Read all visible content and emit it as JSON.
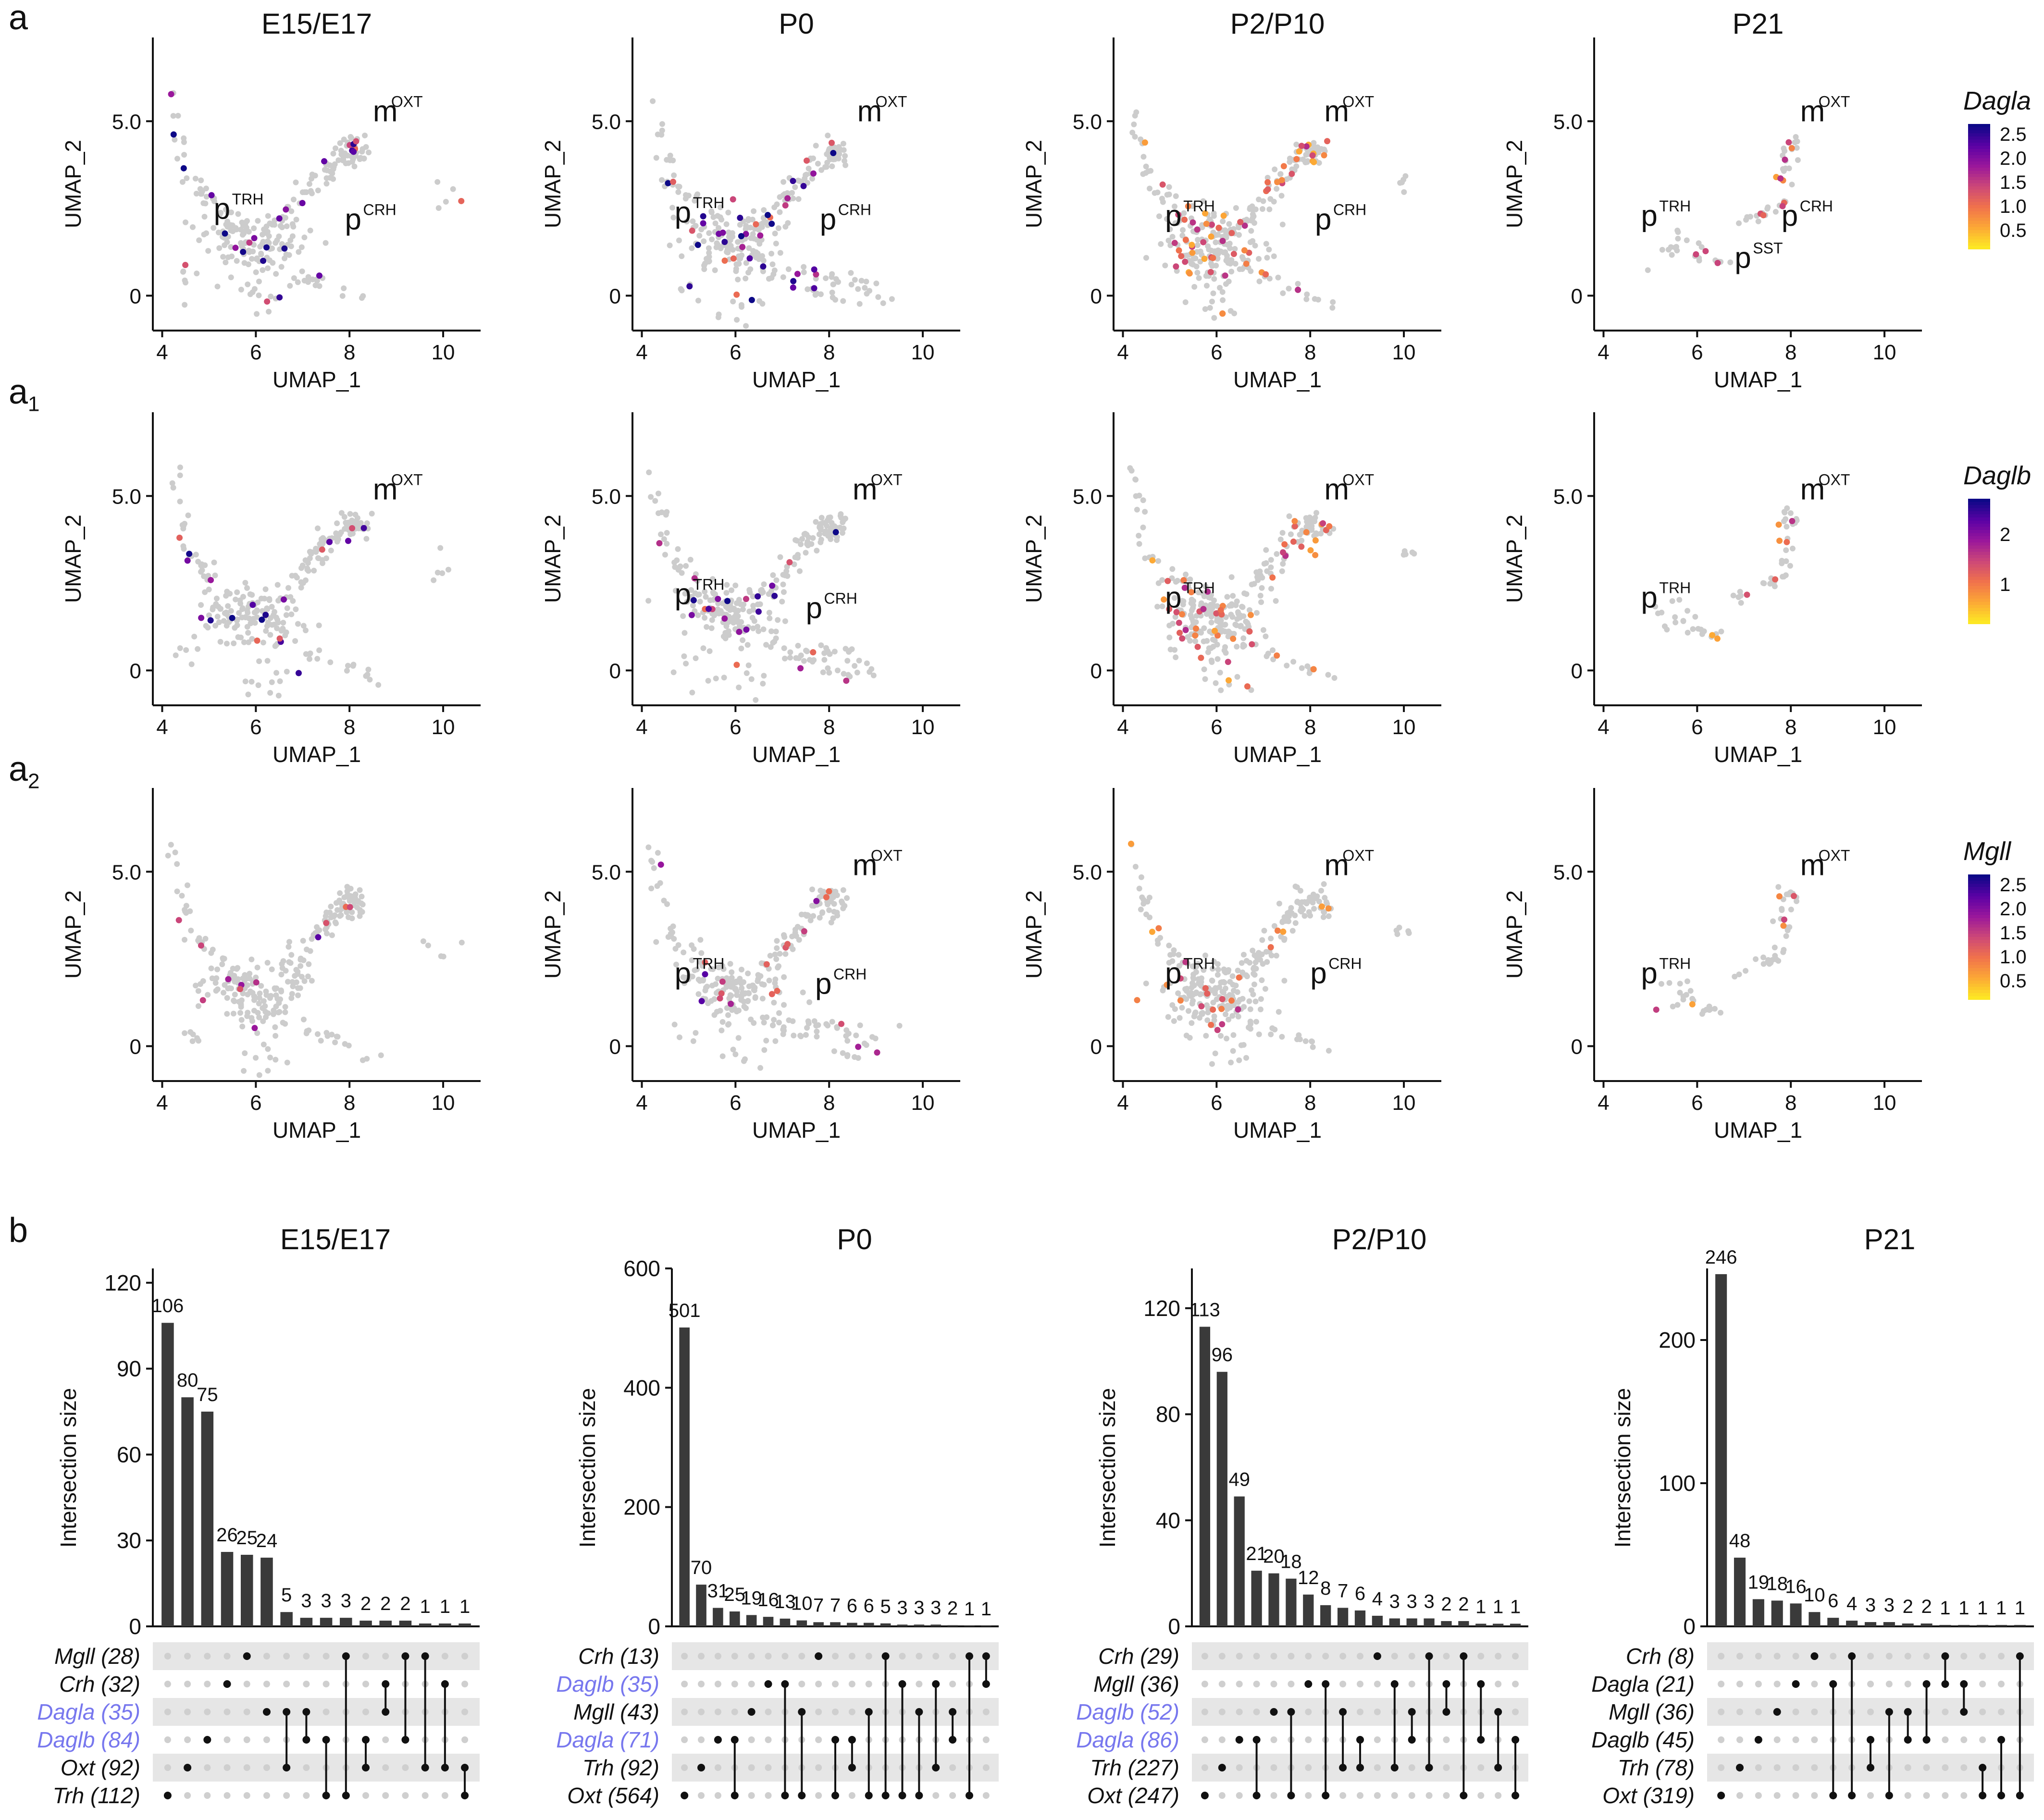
{
  "panel_labels": {
    "a": "a",
    "a1": "a",
    "a1_sub": "1",
    "a2": "a",
    "a2_sub": "2",
    "b": "b"
  },
  "stages": [
    "E15/E17",
    "P0",
    "P2/P10",
    "P21"
  ],
  "umap": {
    "x_label": "UMAP_1",
    "y_label": "UMAP_2",
    "x_ticks": [
      "4",
      "6",
      "8",
      "10"
    ],
    "y_ticks": [
      "0",
      "5.0"
    ],
    "xlim": [
      3.8,
      10.8
    ],
    "ylim": [
      -1.0,
      7.4
    ],
    "rows": [
      {
        "gene": "Dagla",
        "colorbar_ticks": [
          "2.5",
          "2.0",
          "1.5",
          "1.0",
          "0.5"
        ],
        "colorbar_values": [
          2.5,
          2.0,
          1.5,
          1.0,
          0.5
        ],
        "colorbar_range": [
          0.1,
          2.7
        ]
      },
      {
        "gene": "Daglb",
        "colorbar_ticks": [
          "2",
          "1"
        ],
        "colorbar_values": [
          2,
          1
        ],
        "colorbar_range": [
          0.2,
          2.7
        ]
      },
      {
        "gene": "Mgll",
        "colorbar_ticks": [
          "2.5",
          "2.0",
          "1.5",
          "1.0",
          "0.5"
        ],
        "colorbar_values": [
          2.5,
          2.0,
          1.5,
          1.0,
          0.5
        ],
        "colorbar_range": [
          0.1,
          2.7
        ]
      }
    ],
    "cluster_labels": [
      [
        [
          {
            "base": "m",
            "sup": "OXT",
            "x": 8.5,
            "y": 5.0
          },
          {
            "base": "p",
            "sup": "TRH",
            "x": 5.1,
            "y": 2.2
          },
          {
            "base": "p",
            "sup": "CRH",
            "x": 7.9,
            "y": 1.9
          }
        ],
        [
          {
            "base": "m",
            "sup": "OXT",
            "x": 8.6,
            "y": 5.0
          },
          {
            "base": "p",
            "sup": "TRH",
            "x": 4.7,
            "y": 2.1
          },
          {
            "base": "p",
            "sup": "CRH",
            "x": 7.8,
            "y": 1.9
          }
        ],
        [
          {
            "base": "m",
            "sup": "OXT",
            "x": 8.3,
            "y": 5.0
          },
          {
            "base": "p",
            "sup": "TRH",
            "x": 4.9,
            "y": 2.0
          },
          {
            "base": "p",
            "sup": "CRH",
            "x": 8.1,
            "y": 1.9
          }
        ],
        [
          {
            "base": "m",
            "sup": "OXT",
            "x": 8.2,
            "y": 5.0
          },
          {
            "base": "p",
            "sup": "TRH",
            "x": 4.8,
            "y": 2.0
          },
          {
            "base": "p",
            "sup": "SST",
            "x": 6.8,
            "y": 0.8
          },
          {
            "base": "p",
            "sup": "CRH",
            "x": 7.8,
            "y": 2.0
          }
        ]
      ],
      [
        [
          {
            "base": "m",
            "sup": "OXT",
            "x": 8.5,
            "y": 4.9
          }
        ],
        [
          {
            "base": "m",
            "sup": "OXT",
            "x": 8.5,
            "y": 4.9
          },
          {
            "base": "p",
            "sup": "TRH",
            "x": 4.7,
            "y": 1.9
          },
          {
            "base": "p",
            "sup": "CRH",
            "x": 7.5,
            "y": 1.5
          }
        ],
        [
          {
            "base": "m",
            "sup": "OXT",
            "x": 8.3,
            "y": 4.9
          },
          {
            "base": "p",
            "sup": "TRH",
            "x": 4.9,
            "y": 1.8
          }
        ],
        [
          {
            "base": "m",
            "sup": "OXT",
            "x": 8.2,
            "y": 4.9
          },
          {
            "base": "p",
            "sup": "TRH",
            "x": 4.8,
            "y": 1.8
          }
        ]
      ],
      [
        [],
        [
          {
            "base": "m",
            "sup": "OXT",
            "x": 8.5,
            "y": 4.9
          },
          {
            "base": "p",
            "sup": "TRH",
            "x": 4.7,
            "y": 1.8
          },
          {
            "base": "p",
            "sup": "CRH",
            "x": 7.7,
            "y": 1.5
          }
        ],
        [
          {
            "base": "m",
            "sup": "OXT",
            "x": 8.3,
            "y": 4.9
          },
          {
            "base": "p",
            "sup": "TRH",
            "x": 4.9,
            "y": 1.8
          },
          {
            "base": "p",
            "sup": "CRH",
            "x": 8.0,
            "y": 1.8
          }
        ],
        [
          {
            "base": "m",
            "sup": "OXT",
            "x": 8.2,
            "y": 4.9
          },
          {
            "base": "p",
            "sup": "TRH",
            "x": 4.8,
            "y": 1.8
          }
        ]
      ]
    ]
  },
  "upset": {
    "y_label": "Intersection size",
    "panels": [
      {
        "stage": "E15/E17",
        "ymax": 125,
        "y_ticks": [
          0,
          30,
          60,
          90,
          120
        ],
        "values": [
          106,
          80,
          75,
          26,
          25,
          24,
          5,
          3,
          3,
          3,
          2,
          2,
          2,
          1,
          1,
          1
        ],
        "sets": [
          {
            "label": "Mgll (28)",
            "highlight": false
          },
          {
            "label": "Crh (32)",
            "highlight": false
          },
          {
            "label": "Dagla (35)",
            "highlight": true
          },
          {
            "label": "Daglb (84)",
            "highlight": true
          },
          {
            "label": "Oxt (92)",
            "highlight": false
          },
          {
            "label": "Trh (112)",
            "highlight": false
          }
        ],
        "combos": [
          [
            5
          ],
          [
            4
          ],
          [
            3
          ],
          [
            1
          ],
          [
            0
          ],
          [
            2
          ],
          [
            2,
            4
          ],
          [
            2,
            3
          ],
          [
            3,
            5
          ],
          [
            0,
            5
          ],
          [
            3,
            4
          ],
          [
            1,
            2
          ],
          [
            0,
            3
          ],
          [
            0,
            4
          ],
          [
            1,
            4
          ],
          [
            4,
            5
          ]
        ]
      },
      {
        "stage": "P0",
        "ymax": 600,
        "y_ticks": [
          0,
          200,
          400,
          600
        ],
        "values": [
          501,
          70,
          31,
          25,
          19,
          16,
          13,
          10,
          7,
          7,
          6,
          6,
          5,
          3,
          3,
          3,
          2,
          1,
          1
        ],
        "sets": [
          {
            "label": "Crh (13)",
            "highlight": false
          },
          {
            "label": "Daglb (35)",
            "highlight": true
          },
          {
            "label": "Mgll (43)",
            "highlight": false
          },
          {
            "label": "Dagla (71)",
            "highlight": true
          },
          {
            "label": "Trh (92)",
            "highlight": false
          },
          {
            "label": "Oxt (564)",
            "highlight": false
          }
        ],
        "combos": [
          [
            5
          ],
          [
            4
          ],
          [
            3
          ],
          [
            3,
            5
          ],
          [
            2
          ],
          [
            1
          ],
          [
            1,
            5
          ],
          [
            2,
            5
          ],
          [
            0
          ],
          [
            3,
            5
          ],
          [
            3,
            4
          ],
          [
            2,
            5
          ],
          [
            0,
            5
          ],
          [
            1,
            5
          ],
          [
            2,
            5
          ],
          [
            1,
            4
          ],
          [
            2,
            3
          ],
          [
            0,
            5
          ],
          [
            0,
            1
          ]
        ]
      },
      {
        "stage": "P2/P10",
        "ymax": 135,
        "y_ticks": [
          0,
          40,
          80,
          120
        ],
        "values": [
          113,
          96,
          49,
          21,
          20,
          18,
          12,
          8,
          7,
          6,
          4,
          3,
          3,
          3,
          2,
          2,
          1,
          1,
          1
        ],
        "sets": [
          {
            "label": "Crh (29)",
            "highlight": false
          },
          {
            "label": "Mgll (36)",
            "highlight": false
          },
          {
            "label": "Daglb (52)",
            "highlight": true
          },
          {
            "label": "Dagla (86)",
            "highlight": true
          },
          {
            "label": "Trh (227)",
            "highlight": false
          },
          {
            "label": "Oxt (247)",
            "highlight": false
          }
        ],
        "combos": [
          [
            5
          ],
          [
            4
          ],
          [
            3
          ],
          [
            3,
            5
          ],
          [
            2
          ],
          [
            2,
            5
          ],
          [
            1
          ],
          [
            1,
            5
          ],
          [
            2,
            4
          ],
          [
            3,
            4
          ],
          [
            0
          ],
          [
            1,
            4
          ],
          [
            2,
            3
          ],
          [
            0,
            4
          ],
          [
            1,
            2
          ],
          [
            0,
            5
          ],
          [
            1,
            3
          ],
          [
            2,
            4
          ],
          [
            3,
            5
          ]
        ]
      },
      {
        "stage": "P21",
        "ymax": 250,
        "y_ticks": [
          0,
          100,
          200
        ],
        "values": [
          246,
          48,
          19,
          18,
          16,
          10,
          6,
          4,
          3,
          3,
          2,
          2,
          1,
          1,
          1,
          1,
          1
        ],
        "sets": [
          {
            "label": "Crh (8)",
            "highlight": false
          },
          {
            "label": "Dagla (21)",
            "highlight": false
          },
          {
            "label": "Mgll (36)",
            "highlight": false
          },
          {
            "label": "Daglb (45)",
            "highlight": false
          },
          {
            "label": "Trh (78)",
            "highlight": false
          },
          {
            "label": "Oxt (319)",
            "highlight": false
          }
        ],
        "combos": [
          [
            5
          ],
          [
            4
          ],
          [
            3
          ],
          [
            2
          ],
          [
            1
          ],
          [
            0
          ],
          [
            1,
            5
          ],
          [
            0,
            5
          ],
          [
            3,
            4
          ],
          [
            2,
            5
          ],
          [
            2,
            3
          ],
          [
            1,
            3
          ],
          [
            0,
            1
          ],
          [
            1,
            2
          ],
          [
            4,
            5
          ],
          [
            3,
            5
          ],
          [
            0,
            5
          ]
        ]
      }
    ]
  },
  "colors": {
    "grey_cells": "#cccccc",
    "bar": "#3a3a3a",
    "dot_on": "#111111",
    "dot_off": "#cfcfcf",
    "stripe": "#e6e6e6",
    "highlight_label": "#7777ee",
    "plasma": [
      "#fde724",
      "#fca636",
      "#f0714c",
      "#cc4778",
      "#9a179b",
      "#5b01a5",
      "#0d0887"
    ]
  }
}
